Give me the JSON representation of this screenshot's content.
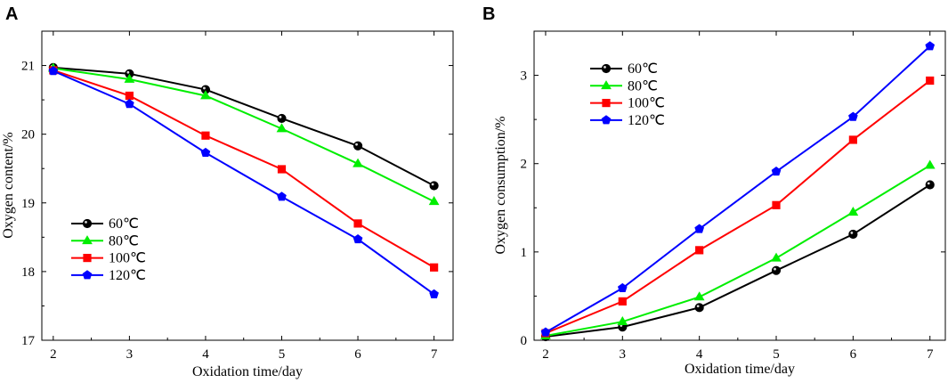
{
  "chart_data": [
    {
      "type": "line",
      "panel_label": "A",
      "title": "",
      "xlabel": "Oxidation time/day",
      "ylabel": "Oxygen content/%",
      "xlim": [
        1.85,
        7.25
      ],
      "ylim": [
        17,
        21.5
      ],
      "xticks": [
        2,
        3,
        4,
        5,
        6,
        7
      ],
      "yticks": [
        17,
        18,
        19,
        20,
        21
      ],
      "legend_position": "bottom-left",
      "x": [
        2,
        3,
        4,
        5,
        6,
        7
      ],
      "series": [
        {
          "name": "60℃",
          "color": "#000000",
          "marker": "circle",
          "values": [
            20.97,
            20.88,
            20.65,
            20.23,
            19.83,
            19.25
          ]
        },
        {
          "name": "80℃",
          "color": "#00ee00",
          "marker": "triangle",
          "values": [
            20.96,
            20.8,
            20.56,
            20.08,
            19.57,
            19.02
          ]
        },
        {
          "name": "100℃",
          "color": "#ff0000",
          "marker": "square",
          "values": [
            20.93,
            20.56,
            19.98,
            19.49,
            18.7,
            18.06
          ]
        },
        {
          "name": "120℃",
          "color": "#0000ff",
          "marker": "pentagon",
          "values": [
            20.92,
            20.44,
            19.73,
            19.09,
            18.47,
            17.67
          ]
        }
      ]
    },
    {
      "type": "line",
      "panel_label": "B",
      "title": "",
      "xlabel": "Oxidation time/day",
      "ylabel": "Oxygen consumption/%",
      "xlim": [
        1.85,
        7.2
      ],
      "ylim": [
        0,
        3.5
      ],
      "xticks": [
        2,
        3,
        4,
        5,
        6,
        7
      ],
      "yticks": [
        0,
        1,
        2,
        3
      ],
      "legend_position": "top-left",
      "x": [
        2,
        3,
        4,
        5,
        6,
        7
      ],
      "series": [
        {
          "name": "60℃",
          "color": "#000000",
          "marker": "circle",
          "values": [
            0.04,
            0.15,
            0.37,
            0.79,
            1.2,
            1.76
          ]
        },
        {
          "name": "80℃",
          "color": "#00ee00",
          "marker": "triangle",
          "values": [
            0.05,
            0.21,
            0.49,
            0.93,
            1.45,
            1.98
          ]
        },
        {
          "name": "100℃",
          "color": "#ff0000",
          "marker": "square",
          "values": [
            0.08,
            0.44,
            1.02,
            1.53,
            2.27,
            2.94
          ]
        },
        {
          "name": "120℃",
          "color": "#0000ff",
          "marker": "pentagon",
          "values": [
            0.09,
            0.59,
            1.26,
            1.91,
            2.53,
            3.33
          ]
        }
      ]
    }
  ]
}
